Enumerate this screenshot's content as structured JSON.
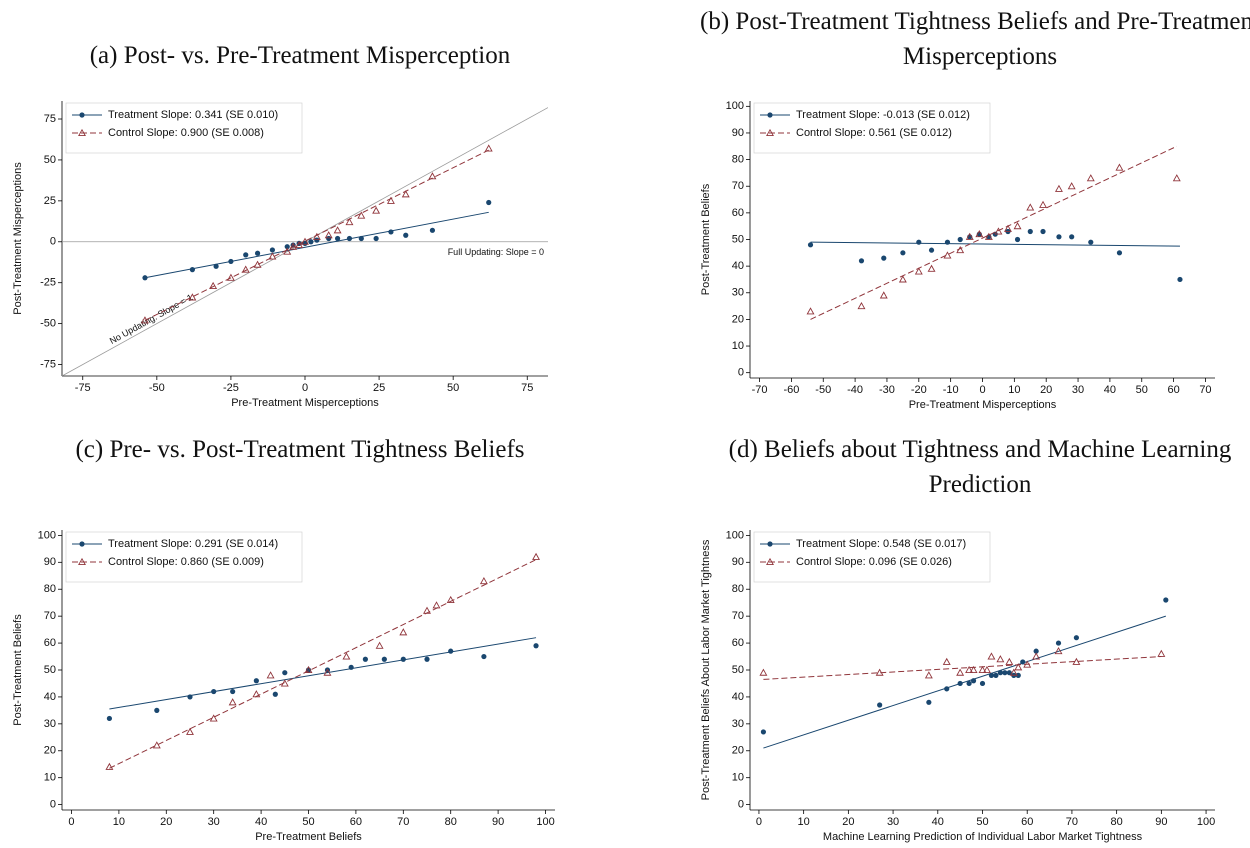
{
  "chart_data": [
    {
      "type": "scatter",
      "title": "(a) Post- vs. Pre-Treatment Misperception",
      "x_label": "Pre-Treatment Misperceptions",
      "y_label": "Post-Treatment Misperceptions",
      "xlim": [
        -82,
        82
      ],
      "ylim": [
        -82,
        86
      ],
      "xticks": [
        -75,
        -50,
        -25,
        0,
        25,
        50,
        75
      ],
      "yticks": [
        -75,
        -50,
        -25,
        0,
        25,
        50,
        75
      ],
      "legend": "upper left",
      "reference_lines": [
        {
          "label": "Full Updating: Slope = 0",
          "slope": 0
        },
        {
          "label": "No Updating: Slope = 1",
          "slope": 1
        }
      ],
      "series": [
        {
          "name": "Treatment Slope: 0.341 (SE 0.010)",
          "color": "#1a476f",
          "marker": "circle",
          "line_style": "solid",
          "x": [
            -54,
            -38,
            -30,
            -25,
            -20,
            -16,
            -11,
            -6,
            -4,
            -2,
            0,
            2,
            4,
            8,
            11,
            15,
            19,
            24,
            29,
            34,
            43,
            62
          ],
          "values": [
            -22,
            -17,
            -15,
            -12,
            -8,
            -7,
            -5,
            -3,
            -2,
            -1,
            -1,
            0,
            1,
            2,
            2,
            2,
            2,
            2,
            6,
            4,
            7,
            24
          ],
          "fit": {
            "x": [
              -54,
              62
            ],
            "y": [
              -22,
              18
            ]
          }
        },
        {
          "name": "Control Slope: 0.900 (SE 0.008)",
          "color": "#90353b",
          "marker": "triangle",
          "line_style": "dashed",
          "x": [
            -54,
            -38,
            -31,
            -25,
            -20,
            -16,
            -11,
            -6,
            -4,
            -2,
            0,
            4,
            8,
            11,
            15,
            19,
            24,
            29,
            34,
            43,
            62
          ],
          "values": [
            -48,
            -34,
            -27,
            -22,
            -17,
            -14,
            -9,
            -6,
            -3,
            -2,
            0,
            3,
            4,
            7,
            12,
            16,
            19,
            25,
            29,
            40,
            57
          ],
          "fit": {
            "x": [
              -54,
              62
            ],
            "y": [
              -48,
              56
            ]
          }
        }
      ]
    },
    {
      "type": "scatter",
      "title": "(b) Post-Treatment Tightness Beliefs and Pre-Treatment Misperceptions",
      "x_label": "Pre-Treatment Misperceptions",
      "y_label": "Post-Treatment Beliefs",
      "xlim": [
        -73,
        73
      ],
      "ylim": [
        -2,
        102
      ],
      "xticks": [
        -70,
        -60,
        -50,
        -40,
        -30,
        -20,
        -10,
        0,
        10,
        20,
        30,
        40,
        50,
        60,
        70
      ],
      "yticks": [
        0,
        10,
        20,
        30,
        40,
        50,
        60,
        70,
        80,
        90,
        100
      ],
      "legend": "upper left",
      "series": [
        {
          "name": "Treatment Slope: -0.013 (SE 0.012)",
          "color": "#1a476f",
          "marker": "circle",
          "line_style": "solid",
          "x": [
            -54,
            -38,
            -31,
            -25,
            -20,
            -16,
            -11,
            -7,
            -4,
            -1,
            2,
            4,
            8,
            11,
            15,
            19,
            24,
            28,
            34,
            43,
            62
          ],
          "values": [
            48,
            42,
            43,
            45,
            49,
            46,
            49,
            50,
            51,
            52,
            51,
            52,
            53,
            50,
            53,
            53,
            51,
            51,
            49,
            45,
            35
          ],
          "fit": {
            "x": [
              -54,
              62
            ],
            "y": [
              49,
              47.5
            ]
          }
        },
        {
          "name": "Control Slope: 0.561 (SE 0.012)",
          "color": "#90353b",
          "marker": "triangle",
          "line_style": "dashed",
          "x": [
            -54,
            -38,
            -31,
            -25,
            -20,
            -16,
            -11,
            -7,
            -4,
            -1,
            2,
            5,
            8,
            11,
            15,
            19,
            24,
            28,
            34,
            43,
            61
          ],
          "values": [
            23,
            25,
            29,
            35,
            38,
            39,
            44,
            46,
            51,
            52,
            51,
            53,
            54,
            55,
            62,
            63,
            69,
            70,
            73,
            77,
            73
          ],
          "fit": {
            "x": [
              -54,
              61
            ],
            "y": [
              20,
              85
            ]
          }
        }
      ]
    },
    {
      "type": "scatter",
      "title": "(c) Pre- vs. Post-Treatment Tightness Beliefs",
      "x_label": "Pre-Treatment Beliefs",
      "y_label": "Post-Treatment Beliefs",
      "xlim": [
        -2,
        102
      ],
      "ylim": [
        -2,
        102
      ],
      "xticks": [
        0,
        10,
        20,
        30,
        40,
        50,
        60,
        70,
        80,
        90,
        100
      ],
      "yticks": [
        0,
        10,
        20,
        30,
        40,
        50,
        60,
        70,
        80,
        90,
        100
      ],
      "legend": "upper left",
      "series": [
        {
          "name": "Treatment Slope: 0.291 (SE 0.014)",
          "color": "#1a476f",
          "marker": "circle",
          "line_style": "solid",
          "x": [
            8,
            18,
            25,
            30,
            34,
            39,
            43,
            45,
            50,
            54,
            59,
            62,
            66,
            70,
            75,
            80,
            87,
            98
          ],
          "values": [
            32,
            35,
            40,
            42,
            42,
            46,
            41,
            49,
            50,
            50,
            51,
            54,
            54,
            54,
            54,
            57,
            55,
            59
          ],
          "fit": {
            "x": [
              8,
              98
            ],
            "y": [
              35.5,
              62
            ]
          }
        },
        {
          "name": "Control Slope: 0.860 (SE 0.009)",
          "color": "#90353b",
          "marker": "triangle",
          "line_style": "dashed",
          "x": [
            8,
            18,
            25,
            30,
            34,
            39,
            42,
            45,
            50,
            54,
            58,
            65,
            70,
            75,
            77,
            80,
            87,
            98
          ],
          "values": [
            14,
            22,
            27,
            32,
            38,
            41,
            48,
            45,
            50,
            49,
            55,
            59,
            64,
            72,
            74,
            76,
            83,
            92
          ],
          "fit": {
            "x": [
              8,
              98
            ],
            "y": [
              13.5,
              91
            ]
          }
        }
      ]
    },
    {
      "type": "scatter",
      "title": "(d) Beliefs about Tightness and Machine Learning Prediction",
      "x_label": "Machine Learning Prediction of Individual Labor Market Tightness",
      "y_label": "Post-Treatment Beliefs About Labor Market Tightness",
      "xlim": [
        -2,
        102
      ],
      "ylim": [
        -2,
        102
      ],
      "xticks": [
        0,
        10,
        20,
        30,
        40,
        50,
        60,
        70,
        80,
        90,
        100
      ],
      "yticks": [
        0,
        10,
        20,
        30,
        40,
        50,
        60,
        70,
        80,
        90,
        100
      ],
      "legend": "upper left",
      "series": [
        {
          "name": "Treatment Slope: 0.548 (SE 0.017)",
          "color": "#1a476f",
          "marker": "circle",
          "line_style": "solid",
          "x": [
            1,
            27,
            38,
            42,
            45,
            47,
            48,
            50,
            52,
            53,
            54,
            55,
            56,
            57,
            58,
            59,
            62,
            67,
            71,
            91
          ],
          "values": [
            27,
            37,
            38,
            43,
            45,
            45,
            46,
            45,
            48,
            48,
            49,
            49,
            49,
            48,
            48,
            53,
            57,
            60,
            62,
            76
          ],
          "fit": {
            "x": [
              1,
              91
            ],
            "y": [
              21,
              70
            ]
          }
        },
        {
          "name": "Control Slope: 0.096 (SE 0.026)",
          "color": "#90353b",
          "marker": "triangle",
          "line_style": "dashed",
          "x": [
            1,
            27,
            38,
            42,
            45,
            47,
            48,
            50,
            51,
            52,
            54,
            56,
            57,
            58,
            60,
            62,
            67,
            71,
            90
          ],
          "values": [
            49,
            49,
            48,
            53,
            49,
            50,
            50,
            50,
            50,
            55,
            54,
            53,
            49,
            51,
            52,
            55,
            57,
            53,
            56
          ],
          "fit": {
            "x": [
              1,
              90
            ],
            "y": [
              46.5,
              55
            ]
          }
        }
      ]
    }
  ]
}
